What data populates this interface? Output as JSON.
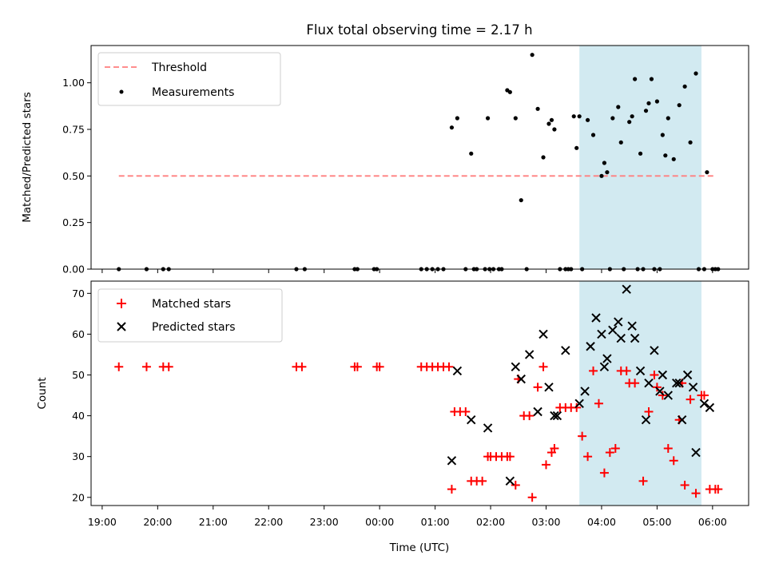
{
  "chart_data": [
    {
      "type": "scatter",
      "title": "Flux total observing time = 2.17 h",
      "xlabel": "",
      "ylabel": "Matched/Predicted stars",
      "ylim": [
        0,
        1.2
      ],
      "yticks": [
        "0.00",
        "0.25",
        "0.50",
        "0.75",
        "1.00"
      ],
      "xlim_hours": [
        18.8,
        30.65
      ],
      "highlight_span_hours": [
        27.6,
        29.8
      ],
      "highlight_color": "#add8e6",
      "legend_position": "top-left",
      "threshold": {
        "label": "Threshold",
        "y": 0.5,
        "x_range_hours": [
          19.3,
          30.05
        ],
        "color": "#ff7f7f"
      },
      "series": [
        {
          "name": "Measurements",
          "color": "#000000",
          "x_hours": [
            19.3,
            19.8,
            20.1,
            20.2,
            22.5,
            22.65,
            23.55,
            23.6,
            23.9,
            23.95,
            24.75,
            24.85,
            24.95,
            25.05,
            25.15,
            25.3,
            25.4,
            25.55,
            25.65,
            25.7,
            25.75,
            25.9,
            25.95,
            25.98,
            26.05,
            26.15,
            26.2,
            26.3,
            26.35,
            26.45,
            26.55,
            26.65,
            26.75,
            26.85,
            26.95,
            27.05,
            27.1,
            27.15,
            27.25,
            27.35,
            27.4,
            27.45,
            27.5,
            27.55,
            27.6,
            27.65,
            27.75,
            27.85,
            28.0,
            28.05,
            28.1,
            28.15,
            28.2,
            28.3,
            28.35,
            28.4,
            28.5,
            28.55,
            28.6,
            28.65,
            28.7,
            28.75,
            28.8,
            28.85,
            28.9,
            28.95,
            29.0,
            29.05,
            29.1,
            29.15,
            29.2,
            29.3,
            29.4,
            29.5,
            29.6,
            29.7,
            29.75,
            29.85,
            29.9,
            30.0,
            30.05,
            30.1
          ],
          "y": [
            0,
            0,
            0,
            0,
            0,
            0,
            0,
            0,
            0,
            0,
            0,
            0,
            0,
            0,
            0,
            0.76,
            0.81,
            0,
            0.62,
            0,
            0,
            0,
            0.81,
            0,
            0,
            0,
            0,
            0.96,
            0.95,
            0.81,
            0.37,
            0,
            1.15,
            0.86,
            0.6,
            0.78,
            0.8,
            0.75,
            0,
            0,
            0,
            0,
            0.82,
            0.65,
            0.82,
            0,
            0.8,
            0.72,
            0.5,
            0.57,
            0.52,
            0,
            0.81,
            0.87,
            0.68,
            0,
            0.79,
            0.82,
            1.02,
            0,
            0.62,
            0,
            0.85,
            0.89,
            1.02,
            0,
            0.9,
            0,
            0.72,
            0.61,
            0.81,
            0.59,
            0.88,
            0.98,
            0.68,
            1.05,
            0,
            0,
            0.52,
            0,
            0,
            0
          ]
        }
      ]
    },
    {
      "type": "scatter",
      "title": "",
      "xlabel": "Time (UTC)",
      "ylabel": "Count",
      "ylim": [
        18,
        73
      ],
      "yticks": [
        "20",
        "30",
        "40",
        "50",
        "60",
        "70"
      ],
      "xticks": [
        "19:00",
        "20:00",
        "21:00",
        "22:00",
        "23:00",
        "00:00",
        "01:00",
        "02:00",
        "03:00",
        "04:00",
        "05:00",
        "06:00"
      ],
      "xlim_hours": [
        18.8,
        30.65
      ],
      "highlight_span_hours": [
        27.6,
        29.8
      ],
      "highlight_color": "#add8e6",
      "legend_position": "top-left",
      "series": [
        {
          "name": "Matched stars",
          "marker": "plus",
          "color": "#ff0000",
          "x_hours": [
            19.3,
            19.8,
            20.1,
            20.2,
            22.5,
            22.6,
            23.55,
            23.6,
            23.95,
            24.0,
            24.75,
            24.85,
            24.95,
            25.05,
            25.15,
            25.25,
            25.3,
            25.35,
            25.45,
            25.55,
            25.65,
            25.75,
            25.85,
            25.95,
            26.0,
            26.1,
            26.2,
            26.3,
            26.35,
            26.45,
            26.5,
            26.6,
            26.7,
            26.75,
            26.85,
            26.95,
            27.0,
            27.1,
            27.15,
            27.25,
            27.35,
            27.45,
            27.55,
            27.65,
            27.75,
            27.85,
            27.95,
            28.05,
            28.15,
            28.25,
            28.35,
            28.45,
            28.5,
            28.6,
            28.75,
            28.85,
            28.95,
            29.0,
            29.1,
            29.2,
            29.3,
            29.4,
            29.45,
            29.5,
            29.6,
            29.7,
            29.8,
            29.85,
            29.95,
            30.05,
            30.1
          ],
          "y": [
            52,
            52,
            52,
            52,
            52,
            52,
            52,
            52,
            52,
            52,
            52,
            52,
            52,
            52,
            52,
            52,
            22,
            41,
            41,
            41,
            24,
            24,
            24,
            30,
            30,
            30,
            30,
            30,
            30,
            23,
            49,
            40,
            40,
            20,
            47,
            52,
            28,
            31,
            32,
            42,
            42,
            42,
            42,
            35,
            30,
            51,
            43,
            26,
            31,
            32,
            51,
            51,
            48,
            48,
            24,
            41,
            50,
            47,
            45,
            32,
            29,
            39,
            48,
            23,
            44,
            21,
            45,
            45,
            22,
            22,
            22
          ],
          "note_x": "clipped at 30.1"
        },
        {
          "name": "Predicted stars",
          "marker": "x",
          "color": "#000000",
          "x_hours": [
            25.3,
            25.4,
            25.65,
            25.95,
            26.35,
            26.45,
            26.55,
            26.7,
            26.85,
            26.95,
            27.05,
            27.15,
            27.2,
            27.35,
            27.6,
            27.7,
            27.8,
            27.9,
            28.0,
            28.05,
            28.1,
            28.2,
            28.3,
            28.35,
            28.45,
            28.55,
            28.6,
            28.7,
            28.8,
            28.85,
            28.95,
            29.05,
            29.1,
            29.2,
            29.35,
            29.4,
            29.45,
            29.55,
            29.65,
            29.7,
            29.85,
            29.95
          ],
          "y": [
            29,
            51,
            39,
            37,
            24,
            52,
            49,
            55,
            41,
            60,
            47,
            40,
            40,
            56,
            43,
            46,
            57,
            64,
            60,
            52,
            54,
            61,
            63,
            59,
            71,
            62,
            59,
            51,
            39,
            48,
            56,
            46,
            50,
            45,
            48,
            48,
            39,
            50,
            47,
            31,
            43,
            42
          ]
        }
      ]
    }
  ]
}
